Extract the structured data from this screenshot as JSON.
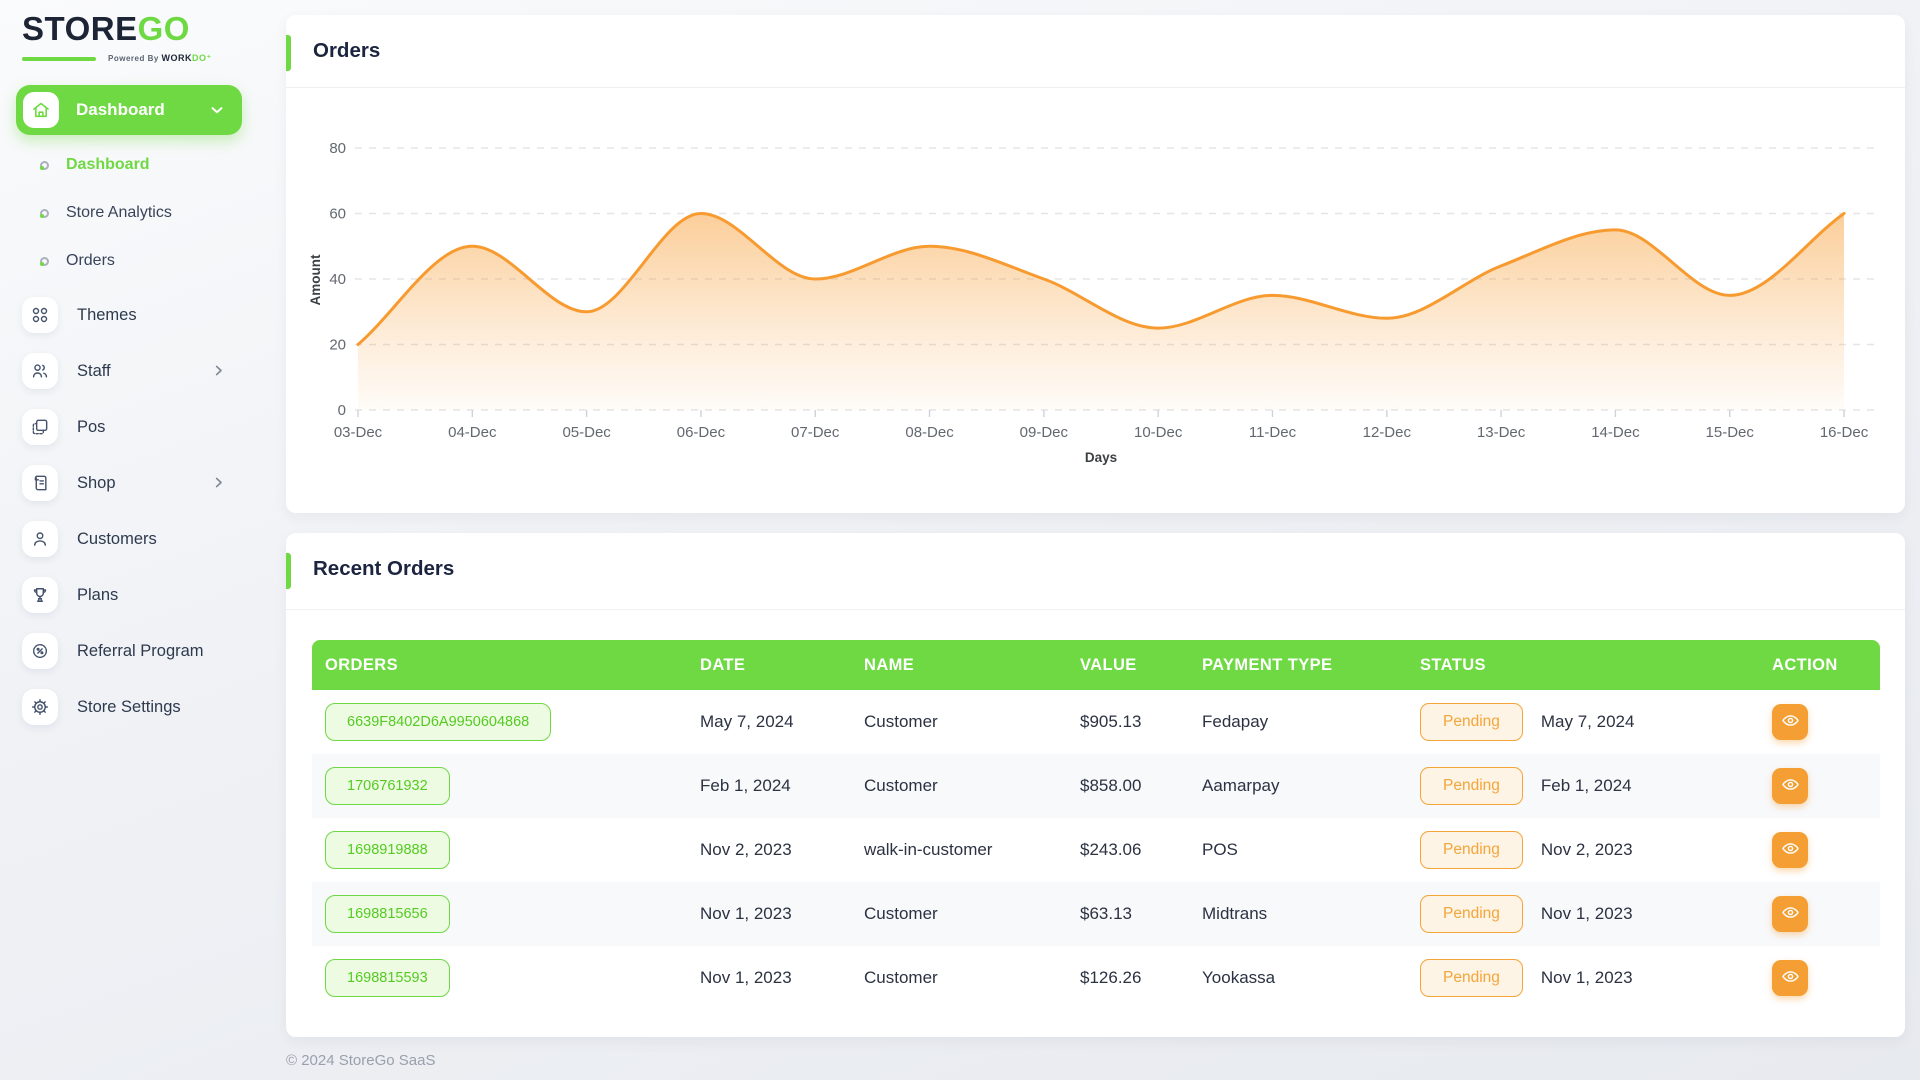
{
  "app": {
    "logo_primary": "STORE",
    "logo_accent": "GO",
    "powered_by": "Powered By ",
    "powered_brand": "WORK",
    "powered_brand_accent": "DO",
    "footer": "© 2024 StoreGo SaaS"
  },
  "colors": {
    "primary_green": "#6fd943",
    "dark_navy": "#1c2540",
    "chart_orange": "#f79b30",
    "pending_orange": "#f3a53a",
    "action_orange": "#f49e33"
  },
  "sidebar": {
    "group": {
      "label": "Dashboard",
      "icon": "home-icon",
      "expanded": true
    },
    "submenu": [
      {
        "label": "Dashboard",
        "active": true
      },
      {
        "label": "Store Analytics",
        "active": false
      },
      {
        "label": "Orders",
        "active": false
      }
    ],
    "items": [
      {
        "label": "Themes",
        "icon": "themes-icon",
        "has_children": false
      },
      {
        "label": "Staff",
        "icon": "staff-icon",
        "has_children": true
      },
      {
        "label": "Pos",
        "icon": "pos-icon",
        "has_children": false
      },
      {
        "label": "Shop",
        "icon": "shop-icon",
        "has_children": true
      },
      {
        "label": "Customers",
        "icon": "customers-icon",
        "has_children": false
      },
      {
        "label": "Plans",
        "icon": "plans-icon",
        "has_children": false
      },
      {
        "label": "Referral Program",
        "icon": "referral-icon",
        "has_children": false
      },
      {
        "label": "Store Settings",
        "icon": "settings-icon",
        "has_children": false
      }
    ]
  },
  "orders_card": {
    "title": "Orders"
  },
  "chart_data": {
    "type": "area",
    "title": "Orders",
    "x": [
      "03-Dec",
      "04-Dec",
      "05-Dec",
      "06-Dec",
      "07-Dec",
      "08-Dec",
      "09-Dec",
      "10-Dec",
      "11-Dec",
      "12-Dec",
      "13-Dec",
      "14-Dec",
      "15-Dec",
      "16-Dec"
    ],
    "series": [
      {
        "name": "Amount",
        "values": [
          20,
          50,
          30,
          60,
          40,
          50,
          40,
          25,
          35,
          28,
          44,
          55,
          35,
          60
        ]
      }
    ],
    "xlabel": "Days",
    "ylabel": "Amount",
    "ylim": [
      0,
      80
    ],
    "yticks": [
      0,
      20,
      40,
      60,
      80
    ],
    "grid": "horizontal-dashed",
    "legend": "none",
    "line_color": "#f79b30",
    "fill": "orange-gradient-to-transparent"
  },
  "recent_orders": {
    "title": "Recent Orders",
    "columns": [
      "ORDERS",
      "DATE",
      "NAME",
      "VALUE",
      "PAYMENT TYPE",
      "STATUS",
      "ACTION"
    ],
    "rows": [
      {
        "order_id": "6639F8402D6A9950604868",
        "date": "May 7, 2024",
        "name": "Customer",
        "value": "$905.13",
        "payment_type": "Fedapay",
        "status": "Pending",
        "status_date": "May 7, 2024"
      },
      {
        "order_id": "1706761932",
        "date": "Feb 1, 2024",
        "name": "Customer",
        "value": "$858.00",
        "payment_type": "Aamarpay",
        "status": "Pending",
        "status_date": "Feb 1, 2024"
      },
      {
        "order_id": "1698919888",
        "date": "Nov 2, 2023",
        "name": "walk-in-customer",
        "value": "$243.06",
        "payment_type": "POS",
        "status": "Pending",
        "status_date": "Nov 2, 2023"
      },
      {
        "order_id": "1698815656",
        "date": "Nov 1, 2023",
        "name": "Customer",
        "value": "$63.13",
        "payment_type": "Midtrans",
        "status": "Pending",
        "status_date": "Nov 1, 2023"
      },
      {
        "order_id": "1698815593",
        "date": "Nov 1, 2023",
        "name": "Customer",
        "value": "$126.26",
        "payment_type": "Yookassa",
        "status": "Pending",
        "status_date": "Nov 1, 2023"
      }
    ]
  }
}
